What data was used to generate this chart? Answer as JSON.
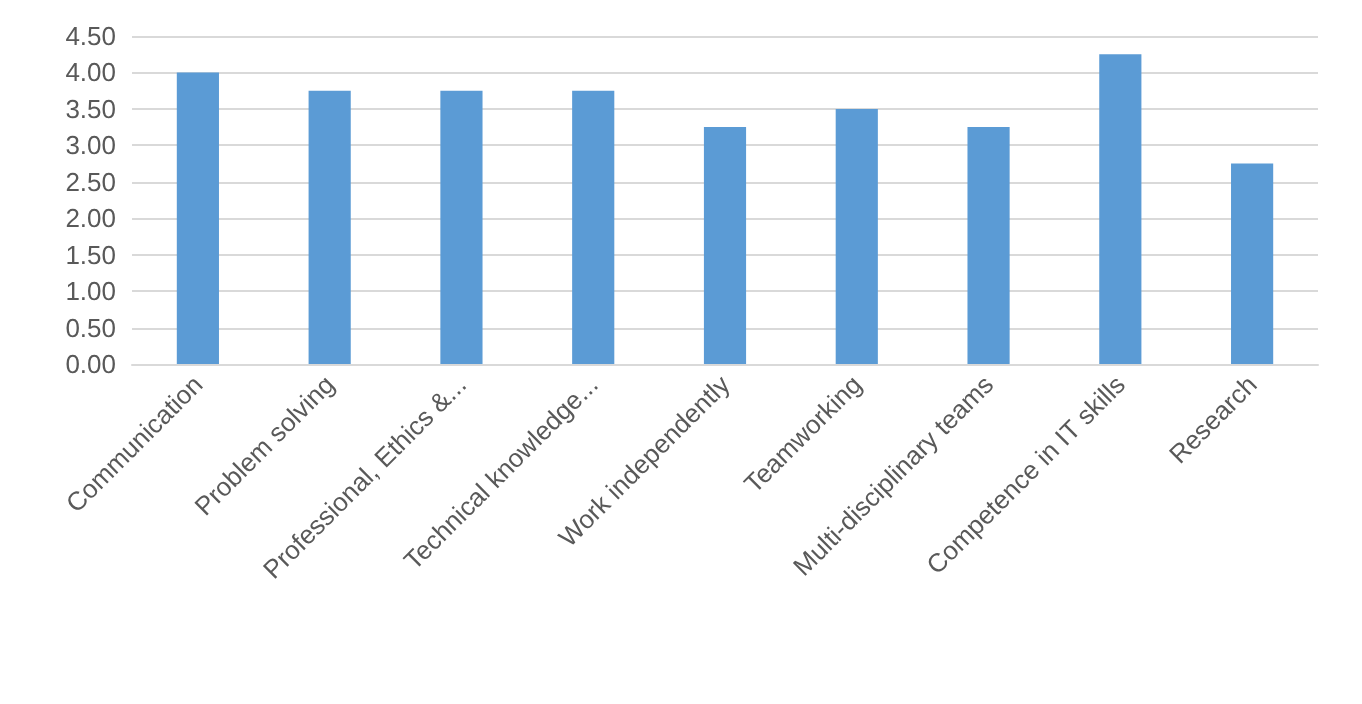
{
  "chart_data": {
    "type": "bar",
    "categories": [
      "Communication",
      "Problem solving",
      "Professional, Ethics &...",
      "Technical knowledge...",
      "Work independently",
      "Teamworking",
      "Multi-disciplinary teams",
      "Competence in IT skills",
      "Research"
    ],
    "values": [
      4.0,
      3.75,
      3.75,
      3.75,
      3.25,
      3.5,
      3.25,
      4.25,
      2.75
    ],
    "color": "#5b9bd5",
    "ylim": [
      0,
      4.5
    ],
    "yticks": [
      {
        "value": 0,
        "label": "0.00"
      },
      {
        "value": 0.5,
        "label": "0.50"
      },
      {
        "value": 1,
        "label": "1.00"
      },
      {
        "value": 1.5,
        "label": "1.50"
      },
      {
        "value": 2,
        "label": "2.00"
      },
      {
        "value": 2.5,
        "label": "2.50"
      },
      {
        "value": 3,
        "label": "3.00"
      },
      {
        "value": 3.5,
        "label": "3.50"
      },
      {
        "value": 4,
        "label": "4.00"
      },
      {
        "value": 4.5,
        "label": "4.50"
      }
    ],
    "grid": "y"
  }
}
